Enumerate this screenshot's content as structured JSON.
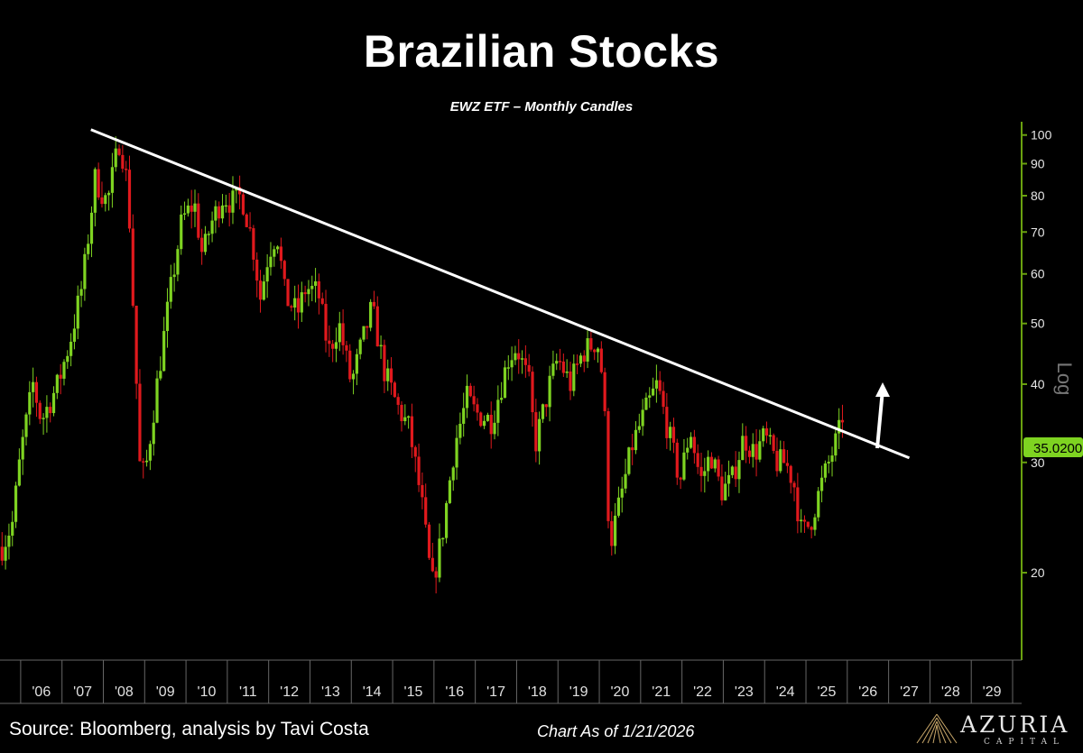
{
  "title": "Brazilian Stocks",
  "subtitle": "EWZ ETF – Monthly Candles",
  "source": "Source: Bloomberg, analysis by Tavi Costa",
  "as_of": "Chart As of 1/21/2026",
  "logo": {
    "word": "AZURIA",
    "sub": "CAPITAL"
  },
  "chart_data": {
    "type": "candlestick",
    "scale": "log",
    "scale_label": "Log",
    "ylim": [
      14.5,
      105
    ],
    "y_ticks": [
      20,
      30,
      40,
      50,
      60,
      70,
      80,
      90,
      100
    ],
    "x_ticks": [
      "'06",
      "'07",
      "'08",
      "'09",
      "'10",
      "'11",
      "'12",
      "'13",
      "'14",
      "'15",
      "'16",
      "'17",
      "'18",
      "'19",
      "'20",
      "'21",
      "'22",
      "'23",
      "'24",
      "'25",
      "'26",
      "'27",
      "'28",
      "'29"
    ],
    "x_start": 2005.5,
    "x_end": 2030.0,
    "last_price": "35.0200",
    "colors": {
      "up": "#7ed321",
      "down": "#e0191d",
      "trendline": "#ffffff",
      "axis": "#6aa10f",
      "last_price_bg": "#7ed321"
    },
    "trendline": {
      "from": {
        "t": 2007.7,
        "price": 102
      },
      "to": {
        "t": 2027.5,
        "price": 30.5
      }
    },
    "arrow": "up-arrow",
    "price_path": [
      [
        2005.55,
        22
      ],
      [
        2005.8,
        24
      ],
      [
        2006.0,
        31
      ],
      [
        2006.3,
        40
      ],
      [
        2006.5,
        35
      ],
      [
        2006.9,
        40
      ],
      [
        2007.2,
        47
      ],
      [
        2007.5,
        58
      ],
      [
        2007.8,
        85
      ],
      [
        2008.1,
        78
      ],
      [
        2008.4,
        99
      ],
      [
        2008.6,
        82
      ],
      [
        2008.75,
        48
      ],
      [
        2008.9,
        28
      ],
      [
        2009.05,
        30
      ],
      [
        2009.3,
        40
      ],
      [
        2009.6,
        55
      ],
      [
        2009.9,
        73
      ],
      [
        2010.2,
        78
      ],
      [
        2010.4,
        64
      ],
      [
        2010.6,
        72
      ],
      [
        2010.9,
        80
      ],
      [
        2011.1,
        78
      ],
      [
        2011.35,
        80
      ],
      [
        2011.6,
        68
      ],
      [
        2011.8,
        55
      ],
      [
        2012.0,
        65
      ],
      [
        2012.2,
        70
      ],
      [
        2012.4,
        55
      ],
      [
        2012.7,
        52
      ],
      [
        2012.9,
        57
      ],
      [
        2013.2,
        56
      ],
      [
        2013.45,
        45
      ],
      [
        2013.7,
        50
      ],
      [
        2014.0,
        40
      ],
      [
        2014.2,
        45
      ],
      [
        2014.5,
        53
      ],
      [
        2014.8,
        42
      ],
      [
        2015.1,
        37
      ],
      [
        2015.4,
        34
      ],
      [
        2015.7,
        26
      ],
      [
        2015.95,
        19
      ],
      [
        2016.2,
        23
      ],
      [
        2016.5,
        32
      ],
      [
        2016.8,
        38
      ],
      [
        2017.0,
        36
      ],
      [
        2017.4,
        35
      ],
      [
        2017.8,
        44
      ],
      [
        2018.0,
        46
      ],
      [
        2018.3,
        40
      ],
      [
        2018.45,
        32
      ],
      [
        2018.8,
        40
      ],
      [
        2019.0,
        44
      ],
      [
        2019.3,
        40
      ],
      [
        2019.6,
        45
      ],
      [
        2019.95,
        47
      ],
      [
        2020.1,
        40
      ],
      [
        2020.25,
        22
      ],
      [
        2020.5,
        26
      ],
      [
        2020.8,
        32
      ],
      [
        2021.1,
        36
      ],
      [
        2021.4,
        40
      ],
      [
        2021.7,
        33
      ],
      [
        2021.95,
        28
      ],
      [
        2022.2,
        34
      ],
      [
        2022.45,
        28
      ],
      [
        2022.7,
        31
      ],
      [
        2022.95,
        27
      ],
      [
        2023.2,
        28
      ],
      [
        2023.5,
        33
      ],
      [
        2023.75,
        31
      ],
      [
        2024.0,
        33
      ],
      [
        2024.3,
        30
      ],
      [
        2024.5,
        30
      ],
      [
        2024.7,
        28
      ],
      [
        2024.9,
        23
      ],
      [
        2025.1,
        24
      ],
      [
        2025.4,
        28
      ],
      [
        2025.7,
        32
      ],
      [
        2025.9,
        35.02
      ]
    ]
  }
}
